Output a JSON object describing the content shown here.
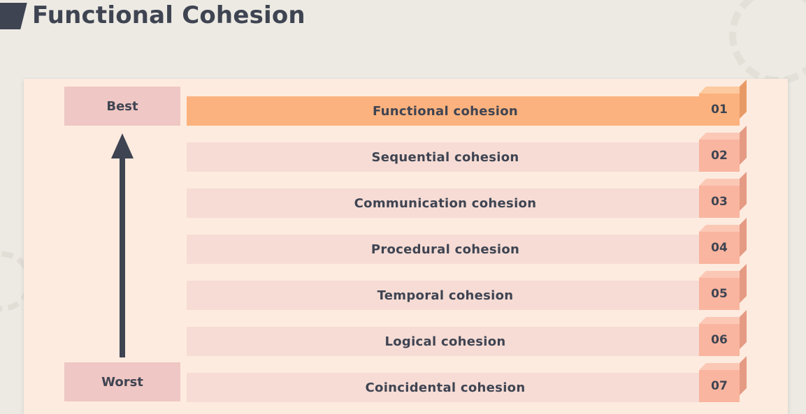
{
  "header": {
    "title": "Functional Cohesion"
  },
  "scale": {
    "best_label": "Best",
    "worst_label": "Worst"
  },
  "levels": [
    {
      "label": "Functional cohesion",
      "number": "01"
    },
    {
      "label": "Sequential cohesion",
      "number": "02"
    },
    {
      "label": "Communication cohesion",
      "number": "03"
    },
    {
      "label": "Procedural cohesion",
      "number": "04"
    },
    {
      "label": "Temporal cohesion",
      "number": "05"
    },
    {
      "label": "Logical cohesion",
      "number": "06"
    },
    {
      "label": "Coincidental cohesion",
      "number": "07"
    }
  ],
  "colors": {
    "highlight": "#fbb27e",
    "row": "#f6dcd5",
    "text": "#3f4452",
    "label_box": "#efc7c4"
  }
}
